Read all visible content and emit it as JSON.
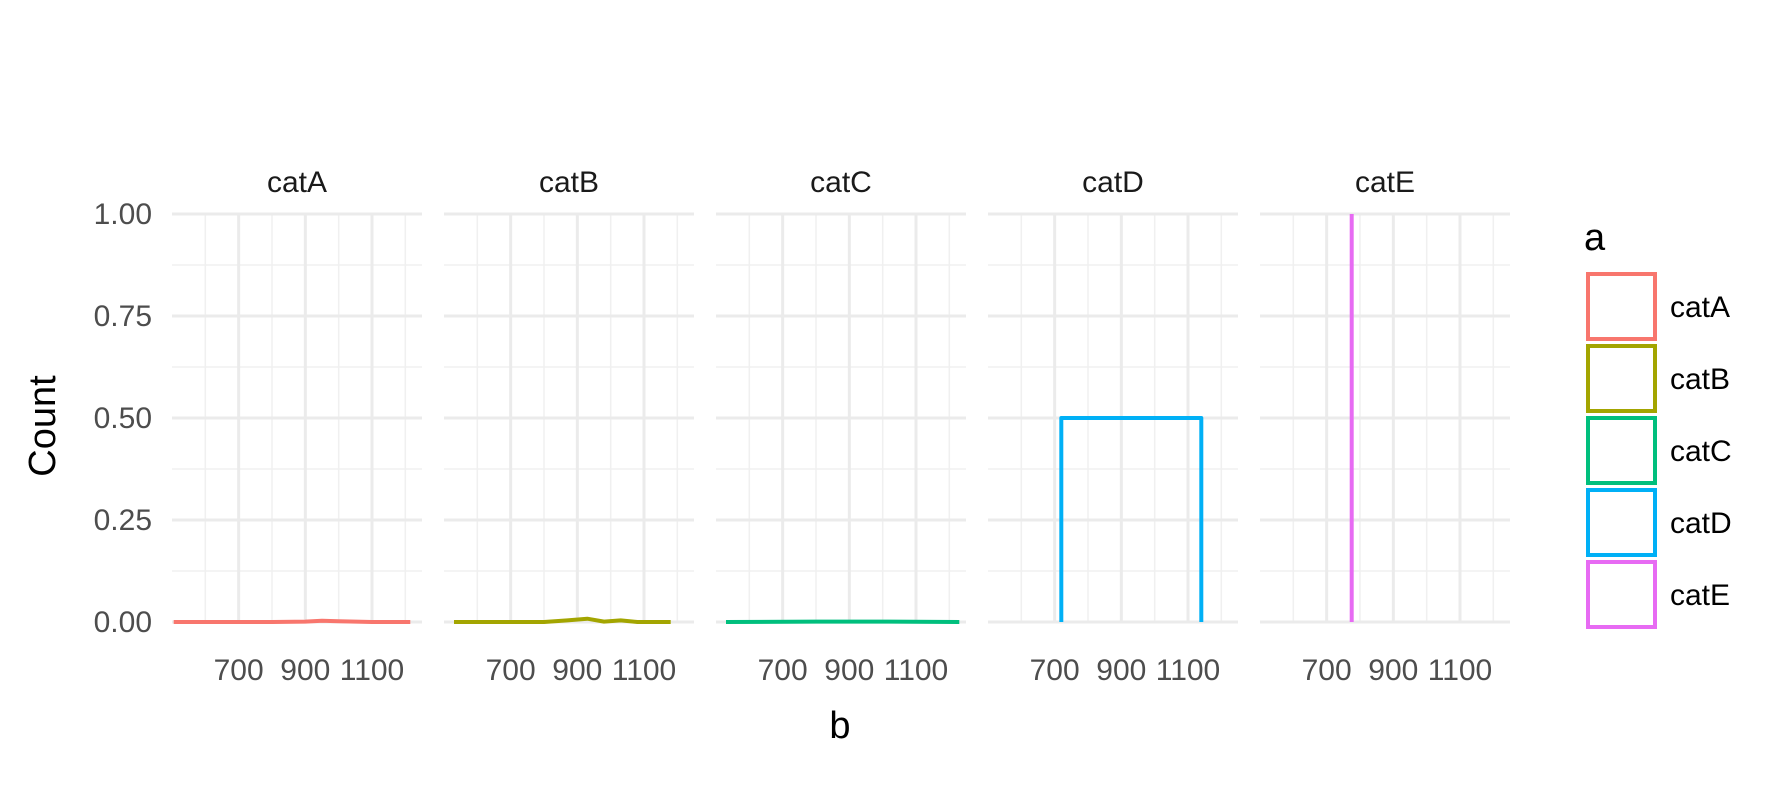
{
  "chart_data": {
    "type": "density",
    "facet_by": "a",
    "panels": [
      "catA",
      "catB",
      "catC",
      "catD",
      "catE"
    ],
    "xlabel": "b",
    "ylabel": "Count",
    "xlim": [
      500,
      1250
    ],
    "ylim": [
      0,
      1
    ],
    "x_ticks": [
      700,
      900,
      1100
    ],
    "x_tick_labels": [
      "700",
      "900",
      "1100"
    ],
    "y_ticks": [
      0,
      0.25,
      0.5,
      0.75,
      1
    ],
    "y_tick_labels": [
      "0.00",
      "0.25",
      "0.50",
      "0.75",
      "1.00"
    ],
    "grid": true,
    "legend": {
      "title": "a",
      "position": "right"
    },
    "series": [
      {
        "name": "catA",
        "color": "#F8766D",
        "points": [
          [
            505,
            0.0
          ],
          [
            800,
            0.0
          ],
          [
            900,
            0.001
          ],
          [
            950,
            0.003
          ],
          [
            1000,
            0.002
          ],
          [
            1100,
            0.0
          ],
          [
            1215,
            0.0
          ]
        ]
      },
      {
        "name": "catB",
        "color": "#A3A500",
        "points": [
          [
            530,
            0.0
          ],
          [
            800,
            0.0
          ],
          [
            870,
            0.004
          ],
          [
            930,
            0.008
          ],
          [
            980,
            0.001
          ],
          [
            1030,
            0.004
          ],
          [
            1080,
            0.0
          ],
          [
            1180,
            0.0
          ]
        ]
      },
      {
        "name": "catC",
        "color": "#00BF7D",
        "points": [
          [
            530,
            0.0
          ],
          [
            800,
            0.001
          ],
          [
            1000,
            0.001
          ],
          [
            1230,
            0.0
          ]
        ]
      },
      {
        "name": "catD",
        "color": "#00B0F6",
        "points": [
          [
            720,
            0.0
          ],
          [
            720,
            0.5
          ],
          [
            1140,
            0.5
          ],
          [
            1140,
            0.0
          ]
        ]
      },
      {
        "name": "catE",
        "color": "#E76BF3",
        "points": [
          [
            775,
            0.0
          ],
          [
            775,
            1.0
          ]
        ]
      }
    ]
  }
}
